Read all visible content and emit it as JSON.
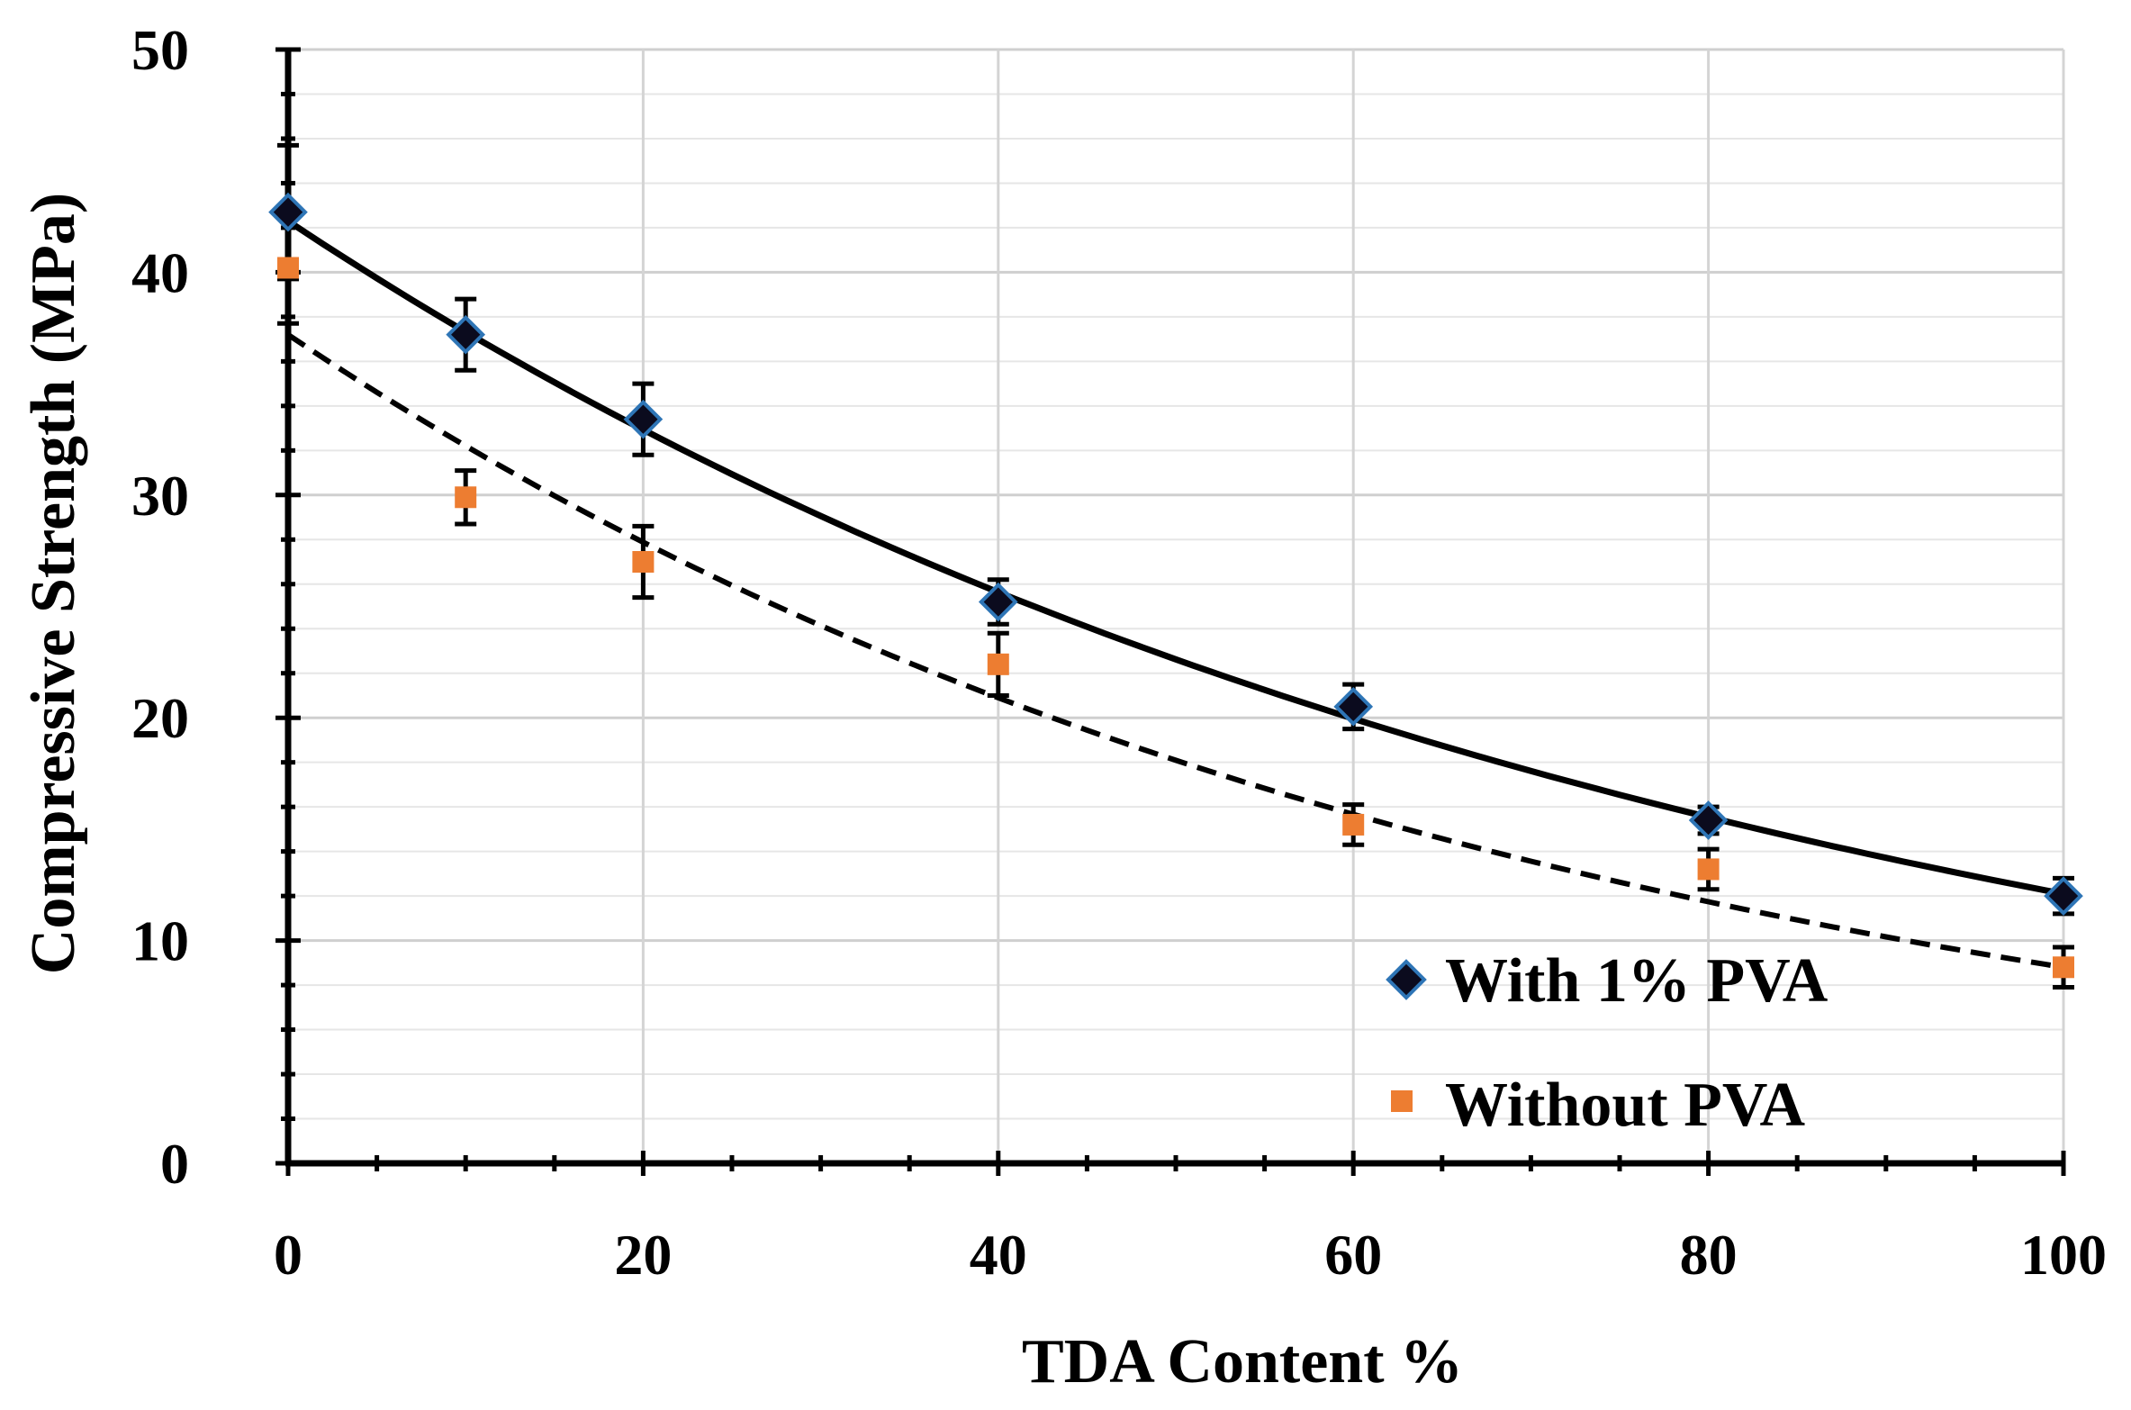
{
  "chart_data": {
    "type": "scatter",
    "title": "",
    "xlabel": "TDA Content %",
    "ylabel": "Compressive Strength (MPa)",
    "xlim": [
      0,
      100
    ],
    "ylim": [
      0,
      50
    ],
    "x_ticks": [
      0,
      20,
      40,
      60,
      80,
      100
    ],
    "x_tick_labels": [
      "0",
      "20",
      "40",
      "60",
      "80",
      "100"
    ],
    "y_ticks": [
      0,
      10,
      20,
      30,
      40,
      50
    ],
    "y_tick_labels": [
      "0",
      "10",
      "20",
      "30",
      "40",
      "50"
    ],
    "grid": true,
    "legend_position": "bottom-right",
    "series": [
      {
        "name": "With 1% PVA",
        "marker": "diamond",
        "color": "#0b0b1e",
        "edge_color": "#2e75b6",
        "trendline": "solid",
        "x": [
          0,
          10,
          20,
          40,
          60,
          80,
          100
        ],
        "values": [
          42.7,
          37.2,
          33.4,
          25.2,
          20.5,
          15.4,
          12.0
        ],
        "errors": [
          3.0,
          1.6,
          1.6,
          1.0,
          1.0,
          0.6,
          0.8
        ],
        "trend_start": 42.3,
        "trend_end": 12.1
      },
      {
        "name": "Without PVA",
        "marker": "square",
        "color": "#ed7d31",
        "edge_color": "#ed7d31",
        "trendline": "dashed",
        "x": [
          0,
          10,
          20,
          40,
          60,
          80,
          100
        ],
        "values": [
          40.2,
          29.9,
          27.0,
          22.4,
          15.2,
          13.2,
          8.8
        ],
        "errors": [
          2.5,
          1.2,
          1.6,
          1.4,
          0.9,
          0.9,
          0.9
        ],
        "trend_start": 37.2,
        "trend_end": 8.8
      }
    ]
  }
}
